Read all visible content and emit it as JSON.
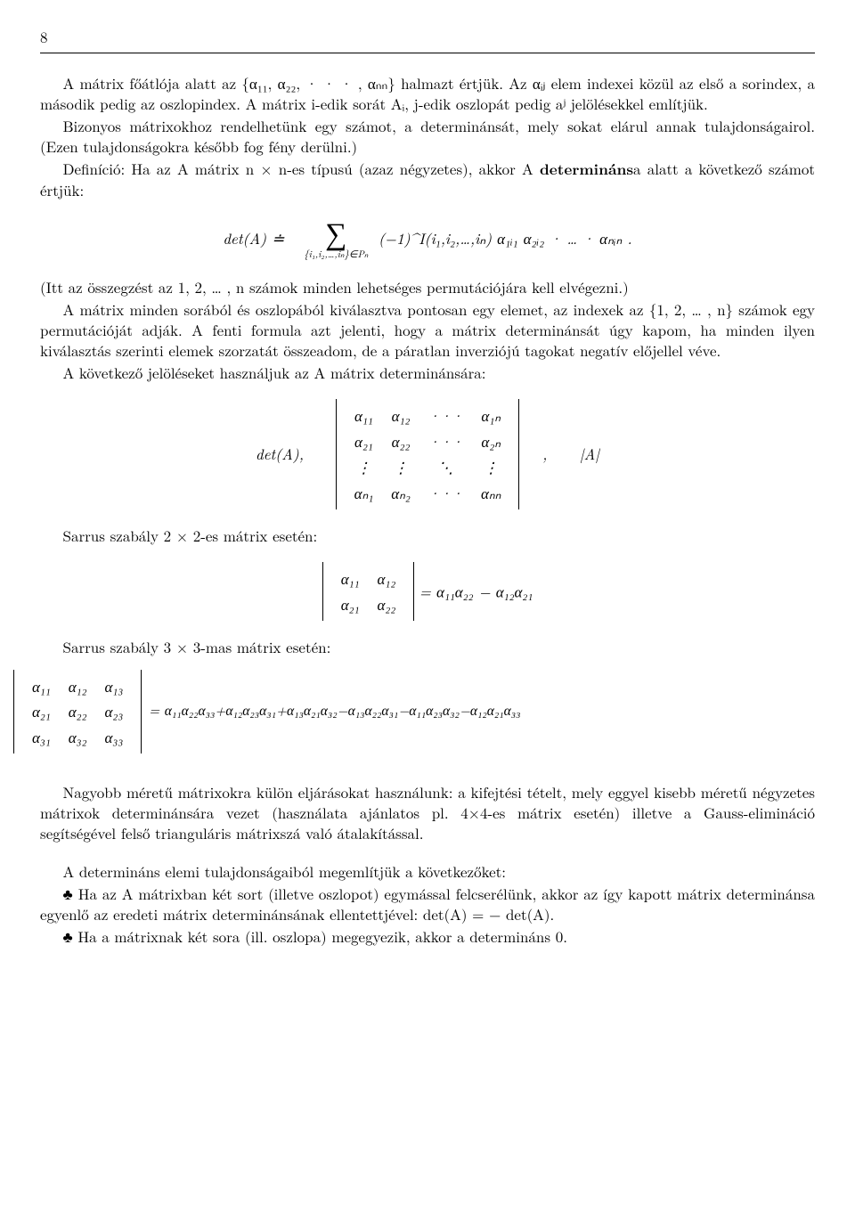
{
  "page_number": "8",
  "para1": "A mátrix főátlója alatt az {α₁₁, α₂₂, · · · , αₙₙ} halmazt értjük. Az αᵢⱼ elem indexei közül az első a sorindex, a második pedig az oszlopindex. A mátrix i-edik sorát Aᵢ, j-edik oszlopát pedig aʲ jelölésekkel említjük.",
  "para2": "Bizonyos mátrixokhoz rendelhetünk egy számot, a determinánsát, mely sokat elárul annak tulajdonságairol. (Ezen tulajdonságokra később fog fény derülni.)",
  "para3_pre": "Definíció: Ha az A mátrix n × n-es típusú (azaz négyzetes), akkor A ",
  "para3_bold": "determináns",
  "para3_post": "a alatt a következő számot értjük:",
  "detA_def_lhs": "det(A) ≐",
  "sum_sub": "{i₁,i₂,…,iₙ}∈Pₙ",
  "sum_rhs": "(−1)^I(i₁,i₂,…,iₙ) α₁ᵢ₁ α₂ᵢ₂ · … · αₙᵢₙ .",
  "para4": "(Itt az összegzést az 1, 2, … , n számok minden lehetséges permutációjára kell elvégezni.)",
  "para5": "A mátrix minden sorából és oszlopából kiválasztva pontosan egy elemet, az indexek az {1, 2, … , n} számok egy permutációját adják. A fenti formula azt jelenti, hogy a mátrix determinánsát úgy kapom, ha minden ilyen kiválasztás szerinti elemek szorzatát összeadom, de a páratlan inverziójú tagokat negatív előjellel véve.",
  "para6": "A következő jelöléseket használjuk az A mátrix determinánsára:",
  "matrix_nn": {
    "label": "det(A),",
    "rows": [
      [
        "α₁₁",
        "α₁₂",
        "···",
        "α₁ₙ"
      ],
      [
        "α₂₁",
        "α₂₂",
        "···",
        "α₂ₙ"
      ],
      [
        "⋮",
        "⋮",
        "⋱",
        "⋮"
      ],
      [
        "αₙ₁",
        "αₙ₂",
        "···",
        "αₙₙ"
      ]
    ],
    "after": ",      |A|"
  },
  "sarrus2_label": "Sarrus szabály 2 × 2-es mátrix esetén:",
  "matrix_22": {
    "rows": [
      [
        "α₁₁",
        "α₁₂"
      ],
      [
        "α₂₁",
        "α₂₂"
      ]
    ],
    "rhs": " = α₁₁α₂₂ − α₁₂α₂₁"
  },
  "sarrus3_label": "Sarrus szabály 3 × 3-mas mátrix esetén:",
  "matrix_33": {
    "rows": [
      [
        "α₁₁",
        "α₁₂",
        "α₁₃"
      ],
      [
        "α₂₁",
        "α₂₂",
        "α₂₃"
      ],
      [
        "α₃₁",
        "α₃₂",
        "α₃₃"
      ]
    ],
    "rhs": "= α₁₁α₂₂α₃₃+α₁₂α₂₃α₃₁+α₁₃α₂₁α₃₂−α₁₃α₂₂α₃₁−α₁₁α₂₃α₃₂−α₁₂α₂₁α₃₃"
  },
  "para7": "Nagyobb méretű mátrixokra külön eljárásokat használunk: a kifejtési tételt, mely eggyel kisebb méretű négyzetes mátrixok determinánsára vezet (használata ajánlatos pl. 4×4-es mátrix esetén) illetve a Gauss-elimináció segítségével felső trianguláris mátrixszá való átalakítással.",
  "para8": "A determináns elemi tulajdonságaiból megemlítjük a következőket:",
  "club1": "♣ Ha az A mátrixban két sort (illetve oszlopot) egymással felcserélünk, akkor az így kapott mátrix determinánsa egyenlő az eredeti mátrix determinánsának ellentettjével: det(A) = − det(A).",
  "club2": "♣ Ha a mátrixnak két sora (ill. oszlopa) megegyezik, akkor a determináns 0."
}
